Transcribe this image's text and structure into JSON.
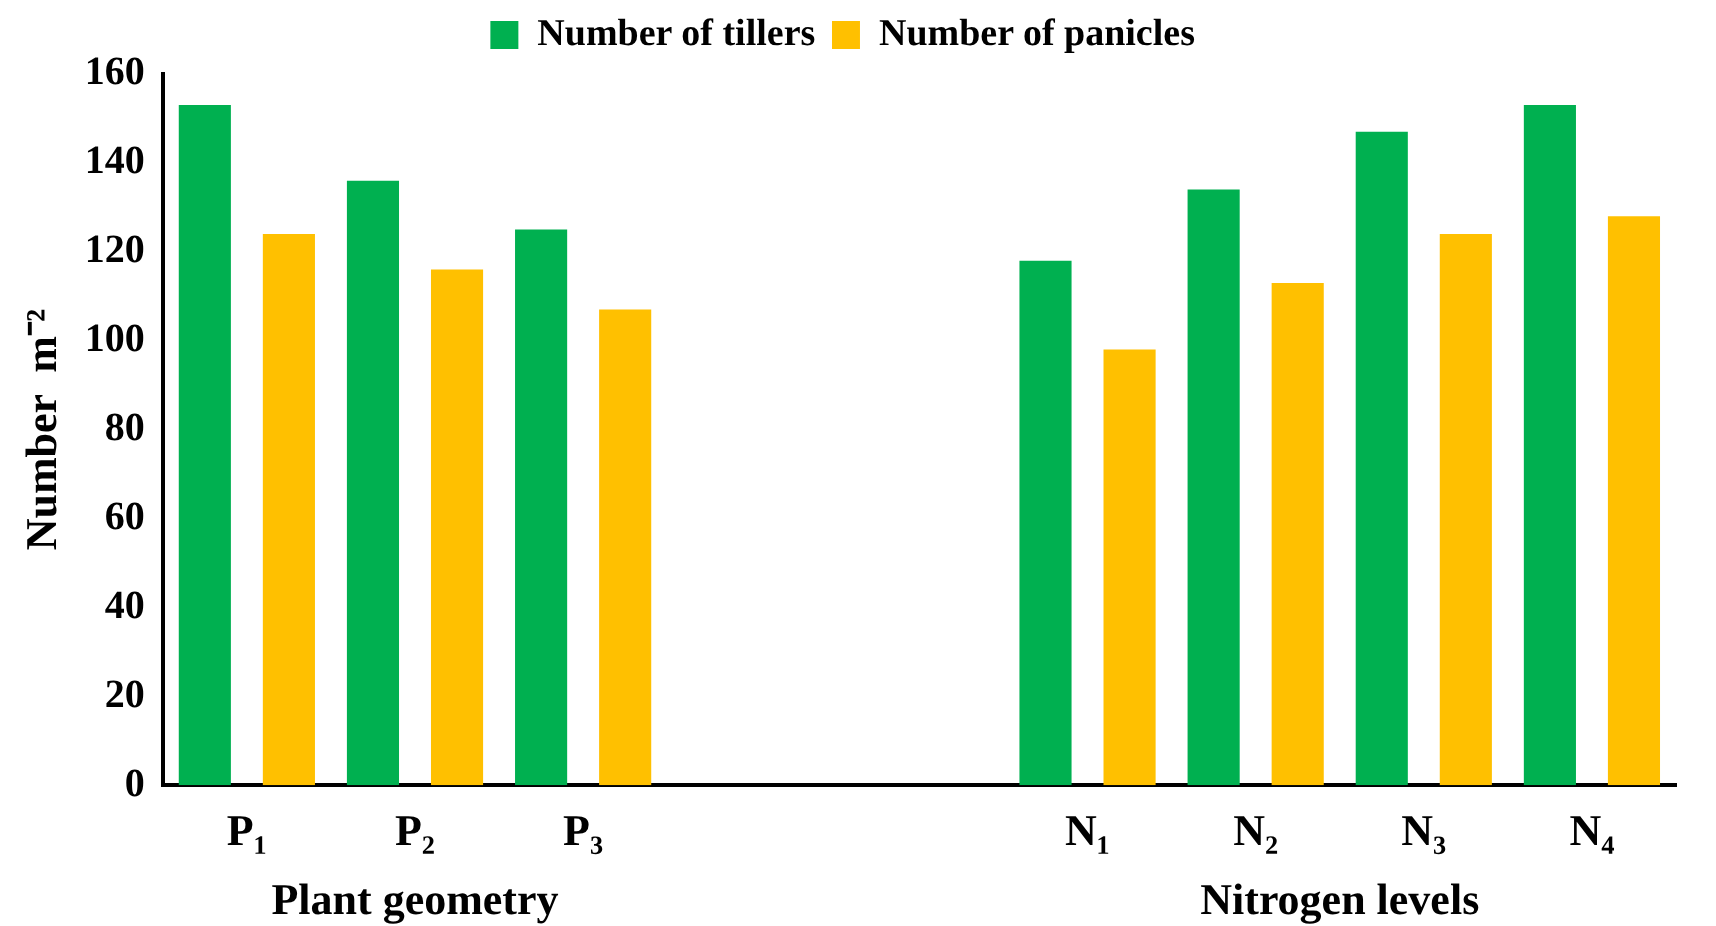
{
  "chart_data": {
    "type": "bar",
    "ylabel": "Number  m⁻²",
    "categories": [
      "P₁",
      "P₂",
      "P₃",
      null,
      null,
      "N₁",
      "N₂",
      "N₃",
      "N₄"
    ],
    "series": [
      {
        "name": "Number of tillers",
        "color": "#00b050",
        "values": [
          153,
          136,
          125,
          null,
          null,
          118,
          134,
          147,
          153
        ]
      },
      {
        "name": "Number of panicles",
        "color": "#ffc000",
        "values": [
          124,
          116,
          107,
          null,
          null,
          98,
          113,
          124,
          128
        ]
      }
    ],
    "ylim": [
      0,
      160
    ],
    "yticks": [
      0,
      20,
      40,
      60,
      80,
      100,
      120,
      140,
      160
    ],
    "grid": false,
    "legend": "top",
    "annotations": [
      "Plant geometry",
      "Nitrogen levels"
    ]
  }
}
